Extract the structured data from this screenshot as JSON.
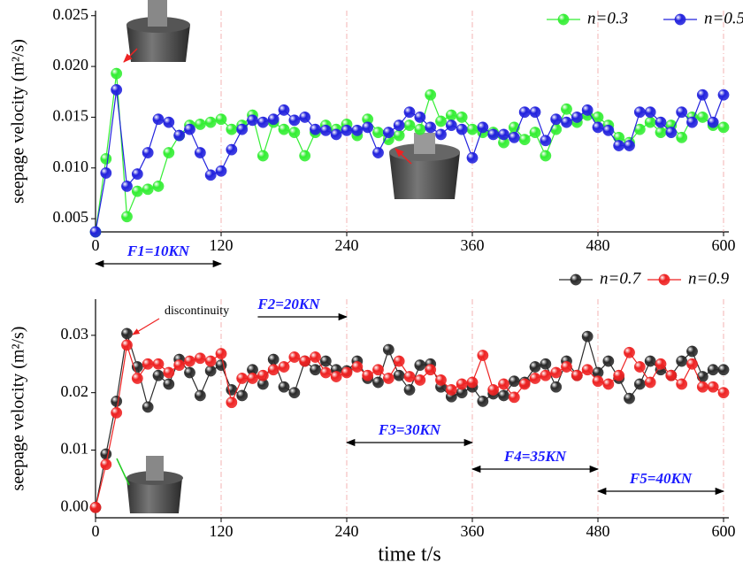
{
  "chart_data": [
    {
      "type": "line",
      "y_label": "seepage velocity (m²/s)",
      "legend": "upper right",
      "xlim": [
        0,
        600
      ],
      "xticks": [
        0,
        120,
        240,
        360,
        480,
        600
      ],
      "ylim": [
        0.0037,
        0.0255
      ],
      "yticks": [
        0.005,
        {
          "value": 0.01,
          "label": "0.010"
        },
        0.015,
        {
          "value": 0.02,
          "label": "0.020"
        },
        0.025
      ],
      "xgrid": true,
      "x": [
        0,
        10,
        20,
        30,
        40,
        50,
        60,
        70,
        80,
        90,
        100,
        110,
        120,
        130,
        140,
        150,
        160,
        170,
        180,
        190,
        200,
        210,
        220,
        230,
        240,
        250,
        260,
        270,
        280,
        290,
        300,
        310,
        320,
        330,
        340,
        350,
        360,
        370,
        380,
        390,
        400,
        410,
        420,
        430,
        440,
        450,
        460,
        470,
        480,
        490,
        500,
        510,
        520,
        530,
        540,
        550,
        560,
        570,
        580,
        590,
        600
      ],
      "series": [
        {
          "name": "n=0.3",
          "color": "#33ee33",
          "values": [
            0.0037,
            0.0109,
            0.0193,
            0.0052,
            0.0077,
            0.0079,
            0.0082,
            0.0115,
            0.0132,
            0.0142,
            0.0143,
            0.0145,
            0.0148,
            0.0138,
            0.0142,
            0.0152,
            0.0112,
            0.0145,
            0.0138,
            0.0135,
            0.0112,
            0.0135,
            0.0142,
            0.0138,
            0.0143,
            0.0132,
            0.0148,
            0.0135,
            0.0128,
            0.0132,
            0.0142,
            0.0138,
            0.0172,
            0.0146,
            0.0152,
            0.015,
            0.0138,
            0.0135,
            0.0135,
            0.0125,
            0.014,
            0.0128,
            0.0135,
            0.0112,
            0.0138,
            0.0158,
            0.0145,
            0.0152,
            0.015,
            0.0142,
            0.013,
            0.0125,
            0.0138,
            0.0145,
            0.0135,
            0.0142,
            0.013,
            0.015,
            0.015,
            0.0142,
            0.014
          ]
        },
        {
          "name": "n=0.5",
          "color": "#2222dd",
          "values": [
            0.0037,
            0.0095,
            0.0177,
            0.0082,
            0.0094,
            0.0115,
            0.0148,
            0.0145,
            0.0132,
            0.0138,
            0.0115,
            0.0093,
            0.0097,
            0.0118,
            0.0138,
            0.0147,
            0.0145,
            0.0148,
            0.0157,
            0.0147,
            0.015,
            0.0138,
            0.0137,
            0.0133,
            0.0137,
            0.0137,
            0.014,
            0.0115,
            0.0135,
            0.0142,
            0.0155,
            0.015,
            0.014,
            0.0133,
            0.0142,
            0.0138,
            0.011,
            0.014,
            0.0133,
            0.0133,
            0.013,
            0.0155,
            0.0155,
            0.0127,
            0.0148,
            0.0145,
            0.015,
            0.0157,
            0.014,
            0.0137,
            0.0122,
            0.0122,
            0.0155,
            0.0155,
            0.0145,
            0.0135,
            0.0155,
            0.0145,
            0.0172,
            0.0145,
            0.0172
          ]
        }
      ]
    },
    {
      "type": "line",
      "y_label": "seepage velocity (m²/s)",
      "x_label": "time t/s",
      "legend": "upper right",
      "xlim": [
        0,
        600
      ],
      "xticks": [
        0,
        120,
        240,
        360,
        480,
        600
      ],
      "ylim": [
        -0.0018,
        0.0363
      ],
      "yticks": [
        {
          "value": 0,
          "label": "0.00"
        },
        0.01,
        0.02,
        0.03
      ],
      "xgrid": true,
      "annotations": [
        {
          "text": "F1=10KN",
          "range": [
            0,
            120
          ]
        },
        {
          "text": "F2=20KN",
          "range": [
            155,
            240
          ]
        },
        {
          "text": "F3=30KN",
          "range": [
            240,
            360
          ]
        },
        {
          "text": "F4=35KN",
          "range": [
            360,
            480
          ]
        },
        {
          "text": "F5=40KN",
          "range": [
            480,
            600
          ]
        }
      ],
      "note": "discontinuity",
      "x": [
        0,
        10,
        20,
        30,
        40,
        50,
        60,
        70,
        80,
        90,
        100,
        110,
        120,
        130,
        140,
        150,
        160,
        170,
        180,
        190,
        200,
        210,
        220,
        230,
        240,
        250,
        260,
        270,
        280,
        290,
        300,
        310,
        320,
        330,
        340,
        350,
        360,
        370,
        380,
        390,
        400,
        410,
        420,
        430,
        440,
        450,
        460,
        470,
        480,
        490,
        500,
        510,
        520,
        530,
        540,
        550,
        560,
        570,
        580,
        590,
        600
      ],
      "series": [
        {
          "name": "n=0.7",
          "color": "#2a2a2a",
          "values": [
            0,
            0.0093,
            0.0185,
            0.0303,
            0.0245,
            0.0175,
            0.023,
            0.0215,
            0.0258,
            0.0235,
            0.0195,
            0.0238,
            0.0248,
            0.0205,
            0.0195,
            0.024,
            0.0215,
            0.0258,
            0.021,
            0.02,
            0.0255,
            0.024,
            0.0255,
            0.024,
            0.0238,
            0.0255,
            0.0225,
            0.0218,
            0.0275,
            0.023,
            0.0205,
            0.0248,
            0.025,
            0.021,
            0.0193,
            0.02,
            0.021,
            0.0185,
            0.0198,
            0.0195,
            0.022,
            0.0218,
            0.0245,
            0.025,
            0.021,
            0.0255,
            0.023,
            0.0298,
            0.0235,
            0.0255,
            0.0225,
            0.019,
            0.0215,
            0.0255,
            0.024,
            0.023,
            0.0255,
            0.0272,
            0.0228,
            0.024,
            0.024
          ]
        },
        {
          "name": "n=0.9",
          "color": "#ee2222",
          "values": [
            0,
            0.0075,
            0.0165,
            0.0283,
            0.0225,
            0.025,
            0.025,
            0.0235,
            0.0248,
            0.0255,
            0.026,
            0.0255,
            0.0268,
            0.0183,
            0.0225,
            0.0225,
            0.023,
            0.024,
            0.0245,
            0.0262,
            0.0255,
            0.0262,
            0.0235,
            0.0228,
            0.0235,
            0.0245,
            0.023,
            0.024,
            0.0225,
            0.0255,
            0.0228,
            0.0222,
            0.024,
            0.0222,
            0.0205,
            0.0215,
            0.0218,
            0.0265,
            0.0205,
            0.0215,
            0.0192,
            0.0215,
            0.0225,
            0.023,
            0.0235,
            0.0245,
            0.023,
            0.024,
            0.022,
            0.0215,
            0.023,
            0.027,
            0.0245,
            0.0218,
            0.025,
            0.023,
            0.0215,
            0.025,
            0.021,
            0.021,
            0.02
          ]
        }
      ]
    }
  ]
}
